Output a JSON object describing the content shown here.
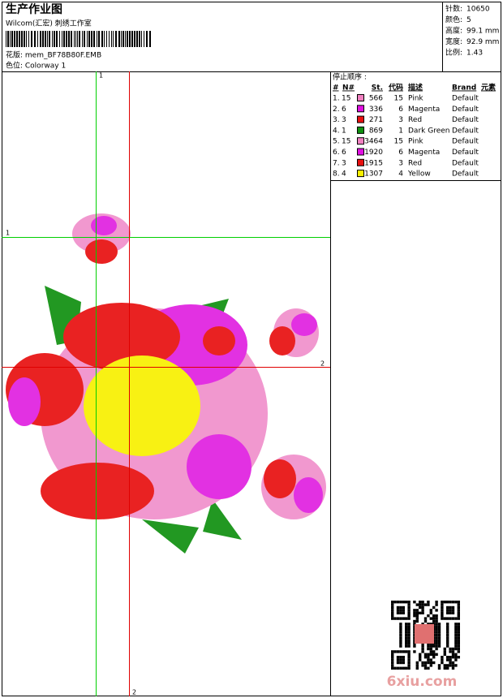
{
  "header": {
    "title": "生产作业图",
    "studio": "Wilcom(汇宏) 刺绣工作室",
    "design": "花版: mem_BF78B80F.EMB",
    "colorway": "色位: Colorway 1"
  },
  "stats": [
    {
      "label": "针数:",
      "value": "10650"
    },
    {
      "label": "颜色:",
      "value": "5"
    },
    {
      "label": "高度:",
      "value": "99.1 mm"
    },
    {
      "label": "宽度:",
      "value": "92.9 mm"
    },
    {
      "label": "比例:",
      "value": "1.43"
    }
  ],
  "table": {
    "caption": "停止顺序 :",
    "columns": [
      "#",
      "N#",
      "St.",
      "代码",
      "描述",
      "Brand",
      "元素"
    ],
    "rows": [
      {
        "stop": "1.",
        "needle": 15,
        "color": "#f080c0",
        "stitches": 566,
        "code": 15,
        "desc": "Pink",
        "brand": "Default"
      },
      {
        "stop": "2.",
        "needle": 6,
        "color": "#e010e0",
        "stitches": 336,
        "code": 6,
        "desc": "Magenta",
        "brand": "Default"
      },
      {
        "stop": "3.",
        "needle": 3,
        "color": "#e81010",
        "stitches": 271,
        "code": 3,
        "desc": "Red",
        "brand": "Default"
      },
      {
        "stop": "4.",
        "needle": 1,
        "color": "#109010",
        "stitches": 869,
        "code": 1,
        "desc": "Dark Green",
        "brand": "Default"
      },
      {
        "stop": "5.",
        "needle": 15,
        "color": "#f080c0",
        "stitches": 3464,
        "code": 15,
        "desc": "Pink",
        "brand": "Default"
      },
      {
        "stop": "6.",
        "needle": 6,
        "color": "#e010e0",
        "stitches": 1920,
        "code": 6,
        "desc": "Magenta",
        "brand": "Default"
      },
      {
        "stop": "7.",
        "needle": 3,
        "color": "#e81010",
        "stitches": 1915,
        "code": 3,
        "desc": "Red",
        "brand": "Default"
      },
      {
        "stop": "8.",
        "needle": 4,
        "color": "#f8f000",
        "stitches": 1307,
        "code": 4,
        "desc": "Yellow",
        "brand": "Default"
      }
    ]
  },
  "guides": {
    "green_v": "1",
    "green_h": "1",
    "red_h": "2",
    "red_v": "2"
  },
  "watermark": "6xiu.com"
}
